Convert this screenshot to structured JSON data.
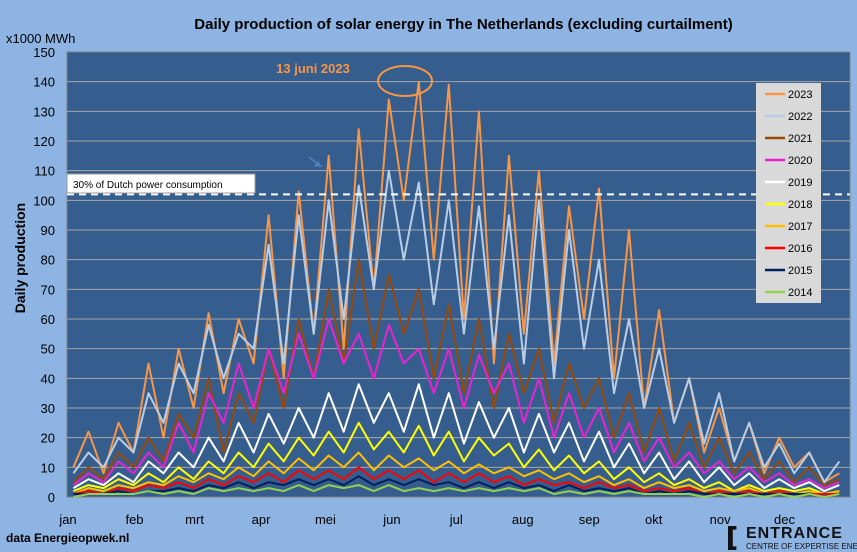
{
  "chart_data": {
    "type": "line",
    "title": "Daily production of solar energy in The Netherlands  (excluding curtailment)",
    "unit_label": "x1000 MWh",
    "ylabel": "Daily production",
    "ylim": [
      0,
      150
    ],
    "yticks": [
      0,
      10,
      20,
      30,
      40,
      50,
      60,
      70,
      80,
      90,
      100,
      110,
      120,
      130,
      140,
      150
    ],
    "x_ticklabels": [
      "jan",
      "feb",
      "mrt",
      "apr",
      "mei",
      "jun",
      "jul",
      "aug",
      "sep",
      "okt",
      "nov",
      "dec"
    ],
    "x_sampling": "weekly approximation of daily values",
    "grid": true,
    "legend_placement": "right",
    "reference_line": {
      "value": 102,
      "label": "30% of Dutch power consumption",
      "color": "#ffffff"
    },
    "annotation": {
      "text": "13 juni 2023",
      "color": "#f79646",
      "value": 140
    },
    "source": "data Energieopwek.nl",
    "logo": {
      "name": "ENTRANCE",
      "sub": "CENTRE OF EXPERTISE ENERGY"
    },
    "background": "#8db4e2",
    "plot_background": "#355e8e",
    "series": [
      {
        "name": "2023",
        "color": "#f79646",
        "values": [
          10,
          22,
          8,
          25,
          15,
          45,
          20,
          50,
          30,
          62,
          35,
          60,
          45,
          95,
          40,
          103,
          55,
          115,
          50,
          124,
          70,
          134,
          100,
          140,
          80,
          139,
          60,
          130,
          45,
          115,
          55,
          110,
          45,
          98,
          60,
          104,
          40,
          90,
          30,
          63,
          25,
          40,
          15,
          30,
          12,
          25,
          8,
          20,
          10,
          15,
          5,
          8
        ]
      },
      {
        "name": "2022",
        "color": "#b9cde5",
        "values": [
          8,
          15,
          10,
          20,
          15,
          35,
          25,
          45,
          35,
          58,
          40,
          55,
          50,
          85,
          45,
          95,
          55,
          100,
          60,
          105,
          70,
          110,
          80,
          106,
          65,
          100,
          55,
          98,
          50,
          95,
          45,
          100,
          40,
          90,
          50,
          80,
          35,
          60,
          30,
          50,
          25,
          40,
          18,
          35,
          12,
          25,
          10,
          18,
          8,
          15,
          5,
          12
        ]
      },
      {
        "name": "2021",
        "color": "#984807",
        "values": [
          5,
          10,
          6,
          15,
          10,
          20,
          12,
          28,
          20,
          40,
          15,
          35,
          25,
          50,
          30,
          60,
          40,
          70,
          45,
          80,
          50,
          75,
          55,
          70,
          40,
          65,
          35,
          60,
          30,
          55,
          35,
          50,
          25,
          45,
          30,
          40,
          20,
          35,
          15,
          30,
          12,
          25,
          10,
          20,
          8,
          15,
          6,
          12,
          5,
          10,
          4,
          6
        ]
      },
      {
        "name": "2020",
        "color": "#e923d1",
        "values": [
          4,
          8,
          5,
          12,
          8,
          15,
          10,
          25,
          15,
          35,
          25,
          45,
          30,
          50,
          35,
          55,
          40,
          60,
          45,
          55,
          40,
          58,
          45,
          50,
          35,
          50,
          30,
          48,
          35,
          45,
          25,
          40,
          20,
          35,
          20,
          30,
          15,
          25,
          12,
          20,
          10,
          15,
          8,
          12,
          6,
          10,
          5,
          8,
          4,
          6,
          3,
          5
        ]
      },
      {
        "name": "2019",
        "color": "#ffffff",
        "values": [
          3,
          6,
          4,
          8,
          5,
          12,
          8,
          15,
          10,
          20,
          12,
          25,
          15,
          28,
          18,
          30,
          20,
          35,
          22,
          38,
          25,
          35,
          22,
          38,
          20,
          35,
          18,
          32,
          20,
          30,
          15,
          28,
          15,
          25,
          12,
          22,
          10,
          18,
          8,
          15,
          6,
          12,
          5,
          10,
          4,
          8,
          3,
          6,
          3,
          5,
          2,
          4
        ]
      },
      {
        "name": "2018",
        "color": "#ffff00",
        "values": [
          2,
          4,
          3,
          6,
          4,
          8,
          5,
          10,
          6,
          12,
          8,
          15,
          10,
          18,
          12,
          20,
          14,
          22,
          15,
          25,
          16,
          22,
          15,
          24,
          14,
          22,
          12,
          20,
          14,
          18,
          10,
          16,
          9,
          14,
          8,
          12,
          6,
          10,
          5,
          8,
          4,
          6,
          3,
          5,
          2,
          4,
          2,
          3,
          2,
          3,
          1,
          2
        ]
      },
      {
        "name": "2017",
        "color": "#ffc000",
        "values": [
          1,
          3,
          2,
          4,
          3,
          5,
          4,
          7,
          5,
          8,
          6,
          10,
          7,
          12,
          8,
          13,
          9,
          14,
          10,
          15,
          9,
          14,
          10,
          13,
          9,
          12,
          8,
          11,
          8,
          10,
          7,
          9,
          6,
          8,
          5,
          7,
          4,
          6,
          3,
          5,
          3,
          4,
          2,
          3,
          2,
          3,
          1,
          2,
          1,
          2,
          1,
          2
        ]
      },
      {
        "name": "2016",
        "color": "#ff0000",
        "values": [
          1,
          2,
          1,
          3,
          2,
          4,
          3,
          5,
          3,
          6,
          4,
          7,
          5,
          8,
          5,
          9,
          6,
          9,
          6,
          10,
          6,
          9,
          6,
          9,
          5,
          8,
          5,
          8,
          5,
          7,
          4,
          6,
          4,
          5,
          3,
          5,
          3,
          4,
          2,
          3,
          2,
          3,
          1,
          2,
          1,
          2,
          1,
          2,
          1,
          1,
          1,
          1
        ]
      },
      {
        "name": "2015",
        "color": "#002060",
        "values": [
          1,
          1,
          1,
          2,
          1,
          2,
          2,
          3,
          2,
          4,
          3,
          5,
          3,
          5,
          4,
          6,
          4,
          6,
          4,
          7,
          4,
          6,
          4,
          6,
          4,
          5,
          3,
          5,
          3,
          5,
          3,
          4,
          2,
          4,
          2,
          3,
          2,
          3,
          1,
          2,
          1,
          2,
          1,
          1,
          1,
          1,
          1,
          1,
          1,
          1,
          0,
          1
        ]
      },
      {
        "name": "2014",
        "color": "#92d050",
        "values": [
          0,
          1,
          1,
          1,
          1,
          2,
          1,
          2,
          1,
          3,
          2,
          3,
          2,
          3,
          2,
          4,
          2,
          4,
          3,
          4,
          2,
          4,
          2,
          3,
          2,
          3,
          2,
          3,
          2,
          3,
          2,
          3,
          1,
          2,
          1,
          2,
          1,
          2,
          1,
          1,
          1,
          1,
          0,
          1,
          0,
          1,
          0,
          1,
          0,
          1,
          0,
          1
        ]
      }
    ]
  }
}
